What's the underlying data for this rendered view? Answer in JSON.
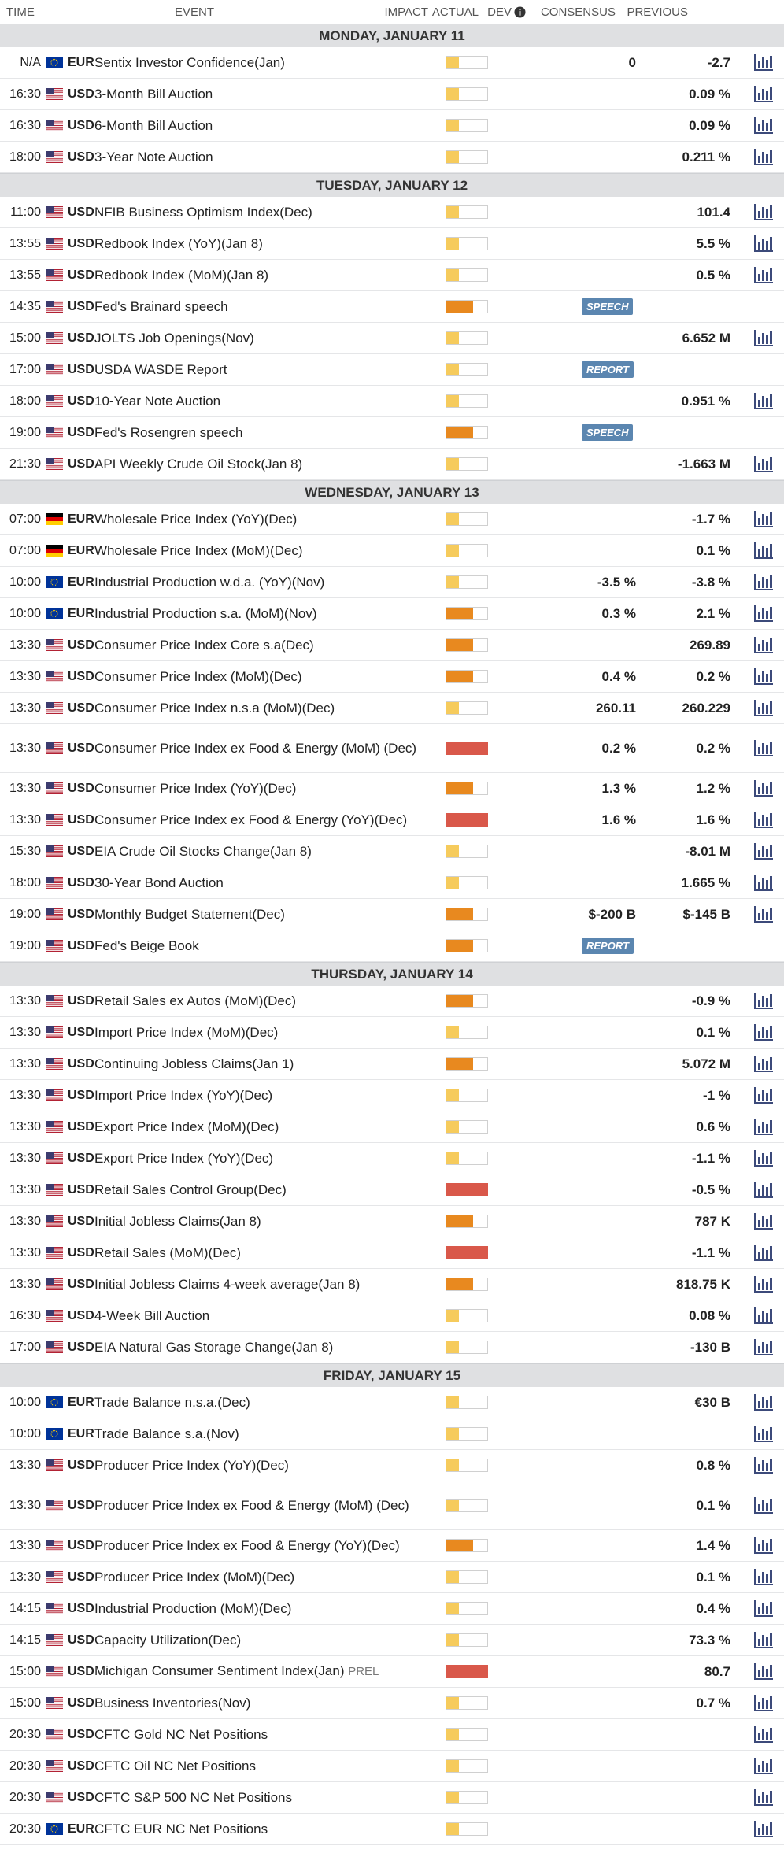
{
  "header": {
    "time": "TIME",
    "event": "EVENT",
    "impact": "IMPACT",
    "actual": "ACTUAL",
    "dev": "DEV",
    "consensus": "CONSENSUS",
    "previous": "PREVIOUS"
  },
  "colors": {
    "low": "#f6cb5c",
    "medium": "#e8891f",
    "high": "#d9584a",
    "tag": "#5b86b0",
    "day_bg": "#dfe0e2"
  },
  "days": [
    {
      "label": "MONDAY, JANUARY 11",
      "events": [
        {
          "time": "N/A",
          "flag": "eu",
          "cur": "EUR",
          "event": "Sentix Investor Confidence(Jan)",
          "impact": "low",
          "consensus": "0",
          "previous": "-2.7",
          "chart": true
        },
        {
          "time": "16:30",
          "flag": "us",
          "cur": "USD",
          "event": "3-Month Bill Auction",
          "impact": "low",
          "consensus": "",
          "previous": "0.09 %",
          "chart": true
        },
        {
          "time": "16:30",
          "flag": "us",
          "cur": "USD",
          "event": "6-Month Bill Auction",
          "impact": "low",
          "consensus": "",
          "previous": "0.09 %",
          "chart": true
        },
        {
          "time": "18:00",
          "flag": "us",
          "cur": "USD",
          "event": "3-Year Note Auction",
          "impact": "low",
          "consensus": "",
          "previous": "0.211 %",
          "chart": true
        }
      ]
    },
    {
      "label": "TUESDAY, JANUARY 12",
      "events": [
        {
          "time": "11:00",
          "flag": "us",
          "cur": "USD",
          "event": "NFIB Business Optimism Index(Dec)",
          "impact": "low",
          "consensus": "",
          "previous": "101.4",
          "chart": true
        },
        {
          "time": "13:55",
          "flag": "us",
          "cur": "USD",
          "event": "Redbook Index (YoY)(Jan 8)",
          "impact": "low",
          "consensus": "",
          "previous": "5.5 %",
          "chart": true
        },
        {
          "time": "13:55",
          "flag": "us",
          "cur": "USD",
          "event": "Redbook Index (MoM)(Jan 8)",
          "impact": "low",
          "consensus": "",
          "previous": "0.5 %",
          "chart": true
        },
        {
          "time": "14:35",
          "flag": "us",
          "cur": "USD",
          "event": "Fed's Brainard speech",
          "impact": "medium",
          "tag": "SPEECH",
          "consensus": "",
          "previous": "",
          "chart": false
        },
        {
          "time": "15:00",
          "flag": "us",
          "cur": "USD",
          "event": "JOLTS Job Openings(Nov)",
          "impact": "low",
          "consensus": "",
          "previous": "6.652 M",
          "chart": true
        },
        {
          "time": "17:00",
          "flag": "us",
          "cur": "USD",
          "event": "USDA WASDE Report",
          "impact": "low",
          "tag": "REPORT",
          "consensus": "",
          "previous": "",
          "chart": false
        },
        {
          "time": "18:00",
          "flag": "us",
          "cur": "USD",
          "event": "10-Year Note Auction",
          "impact": "low",
          "consensus": "",
          "previous": "0.951 %",
          "chart": true
        },
        {
          "time": "19:00",
          "flag": "us",
          "cur": "USD",
          "event": "Fed's Rosengren speech",
          "impact": "medium",
          "tag": "SPEECH",
          "consensus": "",
          "previous": "",
          "chart": false
        },
        {
          "time": "21:30",
          "flag": "us",
          "cur": "USD",
          "event": "API Weekly Crude Oil Stock(Jan 8)",
          "impact": "low",
          "consensus": "",
          "previous": "-1.663 M",
          "chart": true
        }
      ]
    },
    {
      "label": "WEDNESDAY, JANUARY 13",
      "events": [
        {
          "time": "07:00",
          "flag": "de",
          "cur": "EUR",
          "event": "Wholesale Price Index (YoY)(Dec)",
          "impact": "low",
          "consensus": "",
          "previous": "-1.7 %",
          "chart": true
        },
        {
          "time": "07:00",
          "flag": "de",
          "cur": "EUR",
          "event": "Wholesale Price Index (MoM)(Dec)",
          "impact": "low",
          "consensus": "",
          "previous": "0.1 %",
          "chart": true
        },
        {
          "time": "10:00",
          "flag": "eu",
          "cur": "EUR",
          "event": "Industrial Production w.d.a. (YoY)(Nov)",
          "impact": "low",
          "consensus": "-3.5 %",
          "previous": "-3.8 %",
          "chart": true
        },
        {
          "time": "10:00",
          "flag": "eu",
          "cur": "EUR",
          "event": "Industrial Production s.a. (MoM)(Nov)",
          "impact": "medium",
          "consensus": "0.3 %",
          "previous": "2.1 %",
          "chart": true
        },
        {
          "time": "13:30",
          "flag": "us",
          "cur": "USD",
          "event": "Consumer Price Index Core s.a(Dec)",
          "impact": "medium",
          "consensus": "",
          "previous": "269.89",
          "chart": true
        },
        {
          "time": "13:30",
          "flag": "us",
          "cur": "USD",
          "event": "Consumer Price Index (MoM)(Dec)",
          "impact": "medium",
          "consensus": "0.4 %",
          "previous": "0.2 %",
          "chart": true
        },
        {
          "time": "13:30",
          "flag": "us",
          "cur": "USD",
          "event": "Consumer Price Index n.s.a (MoM)(Dec)",
          "impact": "low",
          "consensus": "260.11",
          "previous": "260.229",
          "chart": true
        },
        {
          "time": "13:30",
          "flag": "us",
          "cur": "USD",
          "event": "Consumer Price Index ex Food & Energy (MoM) (Dec)",
          "impact": "high",
          "consensus": "0.2 %",
          "previous": "0.2 %",
          "chart": true,
          "tall": true
        },
        {
          "time": "13:30",
          "flag": "us",
          "cur": "USD",
          "event": "Consumer Price Index (YoY)(Dec)",
          "impact": "medium",
          "consensus": "1.3 %",
          "previous": "1.2 %",
          "chart": true
        },
        {
          "time": "13:30",
          "flag": "us",
          "cur": "USD",
          "event": "Consumer Price Index ex Food & Energy (YoY)(Dec)",
          "impact": "high",
          "consensus": "1.6 %",
          "previous": "1.6 %",
          "chart": true
        },
        {
          "time": "15:30",
          "flag": "us",
          "cur": "USD",
          "event": "EIA Crude Oil Stocks Change(Jan 8)",
          "impact": "low",
          "consensus": "",
          "previous": "-8.01 M",
          "chart": true
        },
        {
          "time": "18:00",
          "flag": "us",
          "cur": "USD",
          "event": "30-Year Bond Auction",
          "impact": "low",
          "consensus": "",
          "previous": "1.665 %",
          "chart": true
        },
        {
          "time": "19:00",
          "flag": "us",
          "cur": "USD",
          "event": "Monthly Budget Statement(Dec)",
          "impact": "medium",
          "consensus": "$-200 B",
          "previous": "$-145 B",
          "chart": true
        },
        {
          "time": "19:00",
          "flag": "us",
          "cur": "USD",
          "event": "Fed's Beige Book",
          "impact": "medium",
          "tag": "REPORT",
          "consensus": "",
          "previous": "",
          "chart": false
        }
      ]
    },
    {
      "label": "THURSDAY, JANUARY 14",
      "events": [
        {
          "time": "13:30",
          "flag": "us",
          "cur": "USD",
          "event": "Retail Sales ex Autos (MoM)(Dec)",
          "impact": "medium",
          "consensus": "",
          "previous": "-0.9 %",
          "chart": true
        },
        {
          "time": "13:30",
          "flag": "us",
          "cur": "USD",
          "event": "Import Price Index (MoM)(Dec)",
          "impact": "low",
          "consensus": "",
          "previous": "0.1 %",
          "chart": true
        },
        {
          "time": "13:30",
          "flag": "us",
          "cur": "USD",
          "event": "Continuing Jobless Claims(Jan 1)",
          "impact": "medium",
          "consensus": "",
          "previous": "5.072 M",
          "chart": true
        },
        {
          "time": "13:30",
          "flag": "us",
          "cur": "USD",
          "event": "Import Price Index (YoY)(Dec)",
          "impact": "low",
          "consensus": "",
          "previous": "-1 %",
          "chart": true
        },
        {
          "time": "13:30",
          "flag": "us",
          "cur": "USD",
          "event": "Export Price Index (MoM)(Dec)",
          "impact": "low",
          "consensus": "",
          "previous": "0.6 %",
          "chart": true
        },
        {
          "time": "13:30",
          "flag": "us",
          "cur": "USD",
          "event": "Export Price Index (YoY)(Dec)",
          "impact": "low",
          "consensus": "",
          "previous": "-1.1 %",
          "chart": true
        },
        {
          "time": "13:30",
          "flag": "us",
          "cur": "USD",
          "event": "Retail Sales Control Group(Dec)",
          "impact": "high",
          "consensus": "",
          "previous": "-0.5 %",
          "chart": true
        },
        {
          "time": "13:30",
          "flag": "us",
          "cur": "USD",
          "event": "Initial Jobless Claims(Jan 8)",
          "impact": "medium",
          "consensus": "",
          "previous": "787 K",
          "chart": true
        },
        {
          "time": "13:30",
          "flag": "us",
          "cur": "USD",
          "event": "Retail Sales (MoM)(Dec)",
          "impact": "high",
          "consensus": "",
          "previous": "-1.1 %",
          "chart": true
        },
        {
          "time": "13:30",
          "flag": "us",
          "cur": "USD",
          "event": "Initial Jobless Claims 4-week average(Jan 8)",
          "impact": "medium",
          "consensus": "",
          "previous": "818.75 K",
          "chart": true
        },
        {
          "time": "16:30",
          "flag": "us",
          "cur": "USD",
          "event": "4-Week Bill Auction",
          "impact": "low",
          "consensus": "",
          "previous": "0.08 %",
          "chart": true
        },
        {
          "time": "17:00",
          "flag": "us",
          "cur": "USD",
          "event": "EIA Natural Gas Storage Change(Jan 8)",
          "impact": "low",
          "consensus": "",
          "previous": "-130 B",
          "chart": true
        }
      ]
    },
    {
      "label": "FRIDAY, JANUARY 15",
      "events": [
        {
          "time": "10:00",
          "flag": "eu",
          "cur": "EUR",
          "event": "Trade Balance n.s.a.(Dec)",
          "impact": "low",
          "consensus": "",
          "previous": "€30 B",
          "chart": true
        },
        {
          "time": "10:00",
          "flag": "eu",
          "cur": "EUR",
          "event": "Trade Balance s.a.(Nov)",
          "impact": "low",
          "consensus": "",
          "previous": "",
          "chart": true
        },
        {
          "time": "13:30",
          "flag": "us",
          "cur": "USD",
          "event": "Producer Price Index (YoY)(Dec)",
          "impact": "low",
          "consensus": "",
          "previous": "0.8 %",
          "chart": true
        },
        {
          "time": "13:30",
          "flag": "us",
          "cur": "USD",
          "event": "Producer Price Index ex Food & Energy (MoM) (Dec)",
          "impact": "low",
          "consensus": "",
          "previous": "0.1 %",
          "chart": true,
          "tall": true
        },
        {
          "time": "13:30",
          "flag": "us",
          "cur": "USD",
          "event": "Producer Price Index ex Food & Energy (YoY)(Dec)",
          "impact": "medium",
          "consensus": "",
          "previous": "1.4 %",
          "chart": true
        },
        {
          "time": "13:30",
          "flag": "us",
          "cur": "USD",
          "event": "Producer Price Index (MoM)(Dec)",
          "impact": "low",
          "consensus": "",
          "previous": "0.1 %",
          "chart": true
        },
        {
          "time": "14:15",
          "flag": "us",
          "cur": "USD",
          "event": "Industrial Production (MoM)(Dec)",
          "impact": "low",
          "consensus": "",
          "previous": "0.4 %",
          "chart": true
        },
        {
          "time": "14:15",
          "flag": "us",
          "cur": "USD",
          "event": "Capacity Utilization(Dec)",
          "impact": "low",
          "consensus": "",
          "previous": "73.3 %",
          "chart": true
        },
        {
          "time": "15:00",
          "flag": "us",
          "cur": "USD",
          "event": "Michigan Consumer Sentiment Index(Jan)",
          "prel": "PREL",
          "impact": "high",
          "consensus": "",
          "previous": "80.7",
          "chart": true
        },
        {
          "time": "15:00",
          "flag": "us",
          "cur": "USD",
          "event": "Business Inventories(Nov)",
          "impact": "low",
          "consensus": "",
          "previous": "0.7 %",
          "chart": true
        },
        {
          "time": "20:30",
          "flag": "us",
          "cur": "USD",
          "event": "CFTC Gold NC Net Positions",
          "impact": "low",
          "consensus": "",
          "previous": "",
          "chart": true
        },
        {
          "time": "20:30",
          "flag": "us",
          "cur": "USD",
          "event": "CFTC Oil NC Net Positions",
          "impact": "low",
          "consensus": "",
          "previous": "",
          "chart": true
        },
        {
          "time": "20:30",
          "flag": "us",
          "cur": "USD",
          "event": "CFTC S&P 500 NC Net Positions",
          "impact": "low",
          "consensus": "",
          "previous": "",
          "chart": true
        },
        {
          "time": "20:30",
          "flag": "eu",
          "cur": "EUR",
          "event": "CFTC EUR NC Net Positions",
          "impact": "low",
          "consensus": "",
          "previous": "",
          "chart": true
        }
      ]
    }
  ]
}
